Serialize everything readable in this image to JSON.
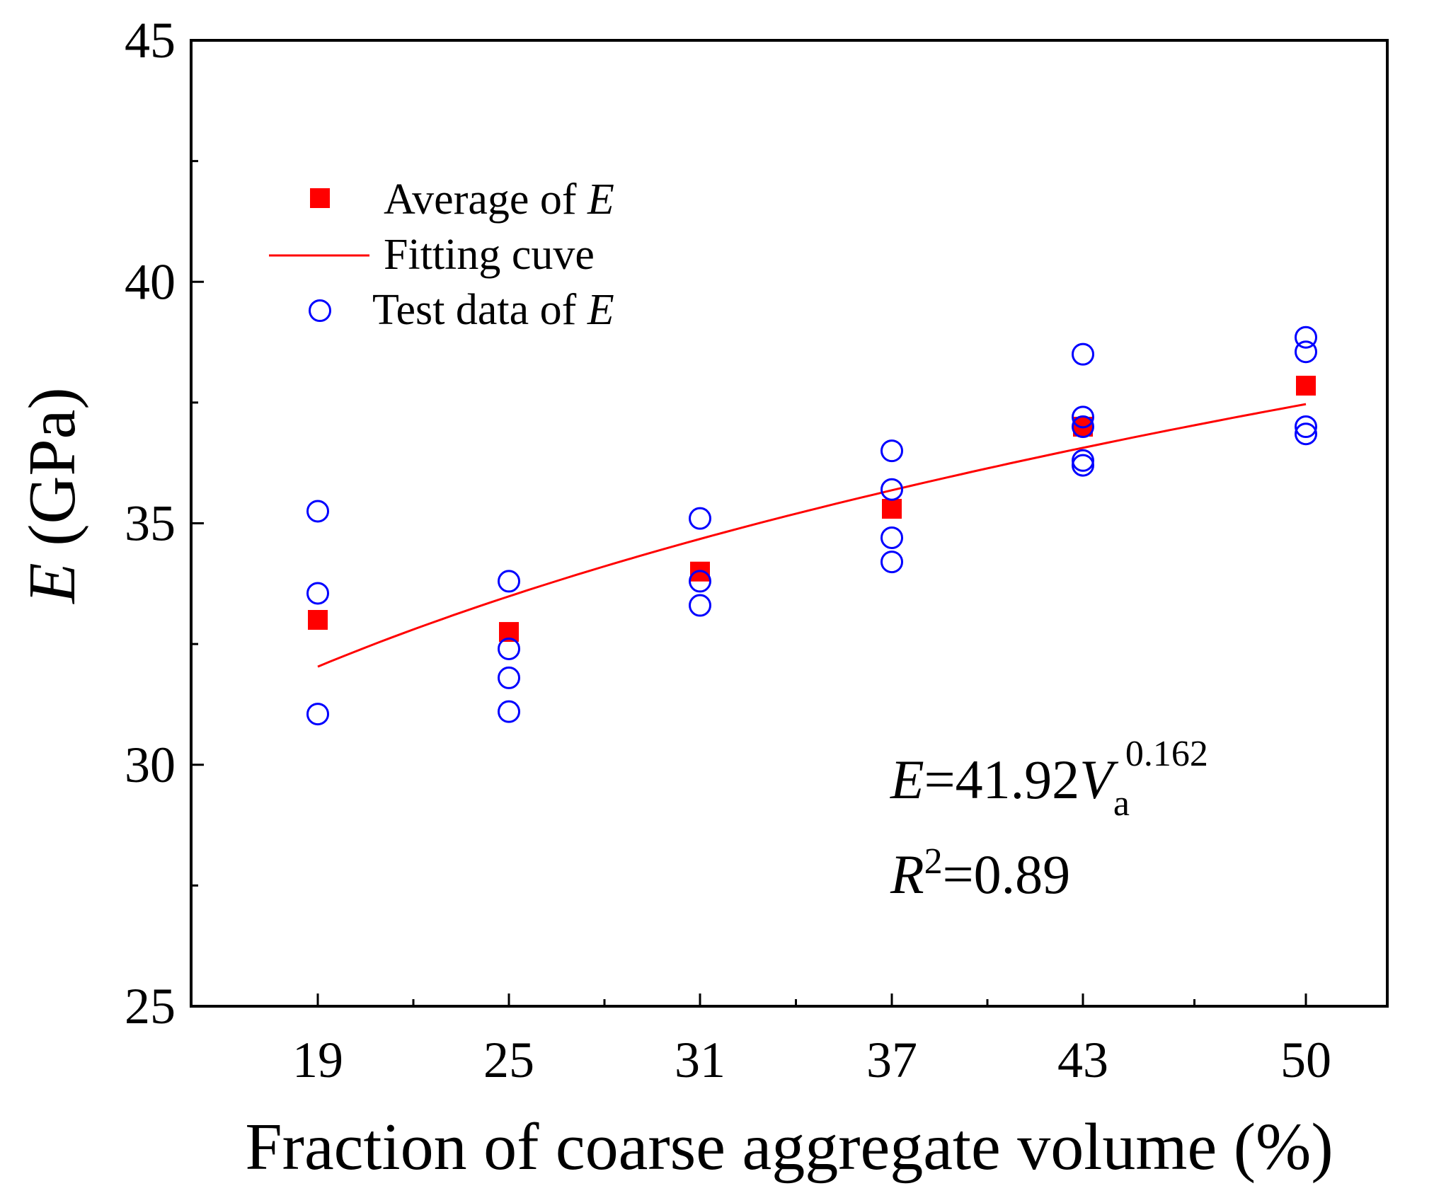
{
  "chart_data": {
    "type": "scatter",
    "title": "",
    "xlabel": "Fraction of coarse aggregate volume (%)",
    "ylabel_symbol": "E",
    "ylabel_unit": " (GPa)",
    "categories": [
      "19",
      "25",
      "31",
      "37",
      "43",
      "50"
    ],
    "x_minor_ticks": [
      22,
      28,
      34,
      40,
      46.5
    ],
    "yticks": [
      25,
      30,
      35,
      40,
      45
    ],
    "y_minor_ticks": [
      27.5,
      32.5,
      37.5,
      42.5
    ],
    "ylim": [
      25,
      45
    ],
    "grid": false,
    "legend_position": "upper-left",
    "series": [
      {
        "name": "Average of E",
        "legend_text": "Average of ",
        "legend_italic": "E",
        "marker": "filled-square",
        "color": "#ff0000",
        "x": [
          19,
          25,
          31,
          37,
          43,
          50
        ],
        "y": [
          33.0,
          32.75,
          34.0,
          35.3,
          37.0,
          37.85
        ]
      },
      {
        "name": "Fitting cuve",
        "legend_text": "Fitting cuve",
        "marker": "line",
        "color": "#ff0000",
        "model": {
          "coefficient": 41.92,
          "exponent": 0.162,
          "x_scale": 0.01
        },
        "x_range": [
          19,
          50
        ]
      },
      {
        "name": "Test data of E",
        "legend_text": "Test data of ",
        "legend_italic": "E",
        "marker": "open-circle",
        "color": "#0000ff",
        "x": [
          19,
          19,
          19,
          25,
          25,
          25,
          25,
          31,
          31,
          31,
          37,
          37,
          37,
          37,
          43,
          43,
          43,
          43,
          43,
          50,
          50,
          50,
          50
        ],
        "y": [
          35.25,
          33.55,
          31.05,
          33.8,
          32.4,
          31.8,
          31.1,
          35.1,
          33.8,
          33.3,
          36.5,
          35.7,
          34.7,
          34.2,
          38.5,
          37.2,
          36.3,
          36.2,
          37.0,
          38.85,
          38.55,
          37.0,
          36.85
        ]
      }
    ],
    "annotations": {
      "equation_lhs": "E",
      "equation_mid": "=41.92",
      "equation_var": "V",
      "equation_sub": "a",
      "equation_exp": "0.162",
      "r2_symbol": "R",
      "r2_sup": "2",
      "r2_value": "=0.89"
    }
  }
}
